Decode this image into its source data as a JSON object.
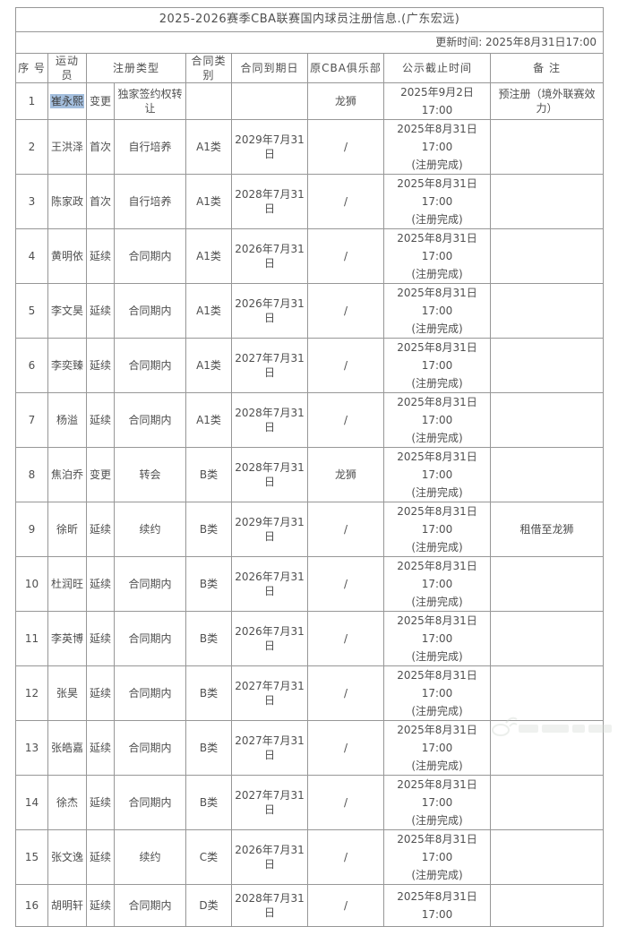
{
  "table": {
    "title": "2025-2026赛季CBA联赛国内球员注册信息.(广东宏远)",
    "update_time": "更新时间: 2025年8月31日17:00",
    "headers": [
      "序 号",
      "运动员",
      "注册类型",
      "合同类别",
      "合同到期日",
      "原CBA俱乐部",
      "公示截止时间",
      "备 注"
    ],
    "highlight_color": "#a3bedd",
    "rows": [
      {
        "no": "1",
        "name": "崔永熙",
        "highlight": true,
        "reg_type": "变更",
        "reg_detail": "独家签约权转让",
        "contract_class": "",
        "contract_expiry": "",
        "former_club": "龙狮",
        "pub_time": "2025年9月2日17:00",
        "pub_note": "",
        "remark": "预注册（境外联赛效力）"
      },
      {
        "no": "2",
        "name": "王洪泽",
        "highlight": false,
        "reg_type": "首次",
        "reg_detail": "自行培养",
        "contract_class": "A1类",
        "contract_expiry": "2029年7月31日",
        "former_club": "/",
        "pub_time": "2025年8月31日17:00",
        "pub_note": "(注册完成)",
        "remark": ""
      },
      {
        "no": "3",
        "name": "陈家政",
        "highlight": false,
        "reg_type": "首次",
        "reg_detail": "自行培养",
        "contract_class": "A1类",
        "contract_expiry": "2028年7月31日",
        "former_club": "/",
        "pub_time": "2025年8月31日17:00",
        "pub_note": "(注册完成)",
        "remark": ""
      },
      {
        "no": "4",
        "name": "黄明依",
        "highlight": false,
        "reg_type": "延续",
        "reg_detail": "合同期内",
        "contract_class": "A1类",
        "contract_expiry": "2026年7月31日",
        "former_club": "/",
        "pub_time": "2025年8月31日17:00",
        "pub_note": "(注册完成)",
        "remark": ""
      },
      {
        "no": "5",
        "name": "李文昊",
        "highlight": false,
        "reg_type": "延续",
        "reg_detail": "合同期内",
        "contract_class": "A1类",
        "contract_expiry": "2026年7月31日",
        "former_club": "/",
        "pub_time": "2025年8月31日17:00",
        "pub_note": "(注册完成)",
        "remark": ""
      },
      {
        "no": "6",
        "name": "李奕臻",
        "highlight": false,
        "reg_type": "延续",
        "reg_detail": "合同期内",
        "contract_class": "A1类",
        "contract_expiry": "2027年7月31日",
        "former_club": "/",
        "pub_time": "2025年8月31日17:00",
        "pub_note": "(注册完成)",
        "remark": ""
      },
      {
        "no": "7",
        "name": "杨溢",
        "highlight": false,
        "reg_type": "延续",
        "reg_detail": "合同期内",
        "contract_class": "A1类",
        "contract_expiry": "2028年7月31日",
        "former_club": "/",
        "pub_time": "2025年8月31日17:00",
        "pub_note": "(注册完成)",
        "remark": ""
      },
      {
        "no": "8",
        "name": "焦泊乔",
        "highlight": false,
        "reg_type": "变更",
        "reg_detail": "转会",
        "contract_class": "B类",
        "contract_expiry": "2028年7月31日",
        "former_club": "龙狮",
        "pub_time": "2025年8月31日17:00",
        "pub_note": "(注册完成)",
        "remark": ""
      },
      {
        "no": "9",
        "name": "徐昕",
        "highlight": false,
        "reg_type": "延续",
        "reg_detail": "续约",
        "contract_class": "B类",
        "contract_expiry": "2029年7月31日",
        "former_club": "/",
        "pub_time": "2025年8月31日17:00",
        "pub_note": "(注册完成)",
        "remark": "租借至龙狮"
      },
      {
        "no": "10",
        "name": "杜润旺",
        "highlight": false,
        "reg_type": "延续",
        "reg_detail": "合同期内",
        "contract_class": "B类",
        "contract_expiry": "2026年7月31日",
        "former_club": "/",
        "pub_time": "2025年8月31日17:00",
        "pub_note": "(注册完成)",
        "remark": ""
      },
      {
        "no": "11",
        "name": "李英博",
        "highlight": false,
        "reg_type": "延续",
        "reg_detail": "合同期内",
        "contract_class": "B类",
        "contract_expiry": "2026年7月31日",
        "former_club": "/",
        "pub_time": "2025年8月31日17:00",
        "pub_note": "(注册完成)",
        "remark": ""
      },
      {
        "no": "12",
        "name": "张昊",
        "highlight": false,
        "reg_type": "延续",
        "reg_detail": "合同期内",
        "contract_class": "B类",
        "contract_expiry": "2027年7月31日",
        "former_club": "/",
        "pub_time": "2025年8月31日17:00",
        "pub_note": "(注册完成)",
        "remark": ""
      },
      {
        "no": "13",
        "name": "张皓嘉",
        "highlight": false,
        "reg_type": "延续",
        "reg_detail": "合同期内",
        "contract_class": "B类",
        "contract_expiry": "2027年7月31日",
        "former_club": "/",
        "pub_time": "2025年8月31日17:00",
        "pub_note": "(注册完成)",
        "remark": ""
      },
      {
        "no": "14",
        "name": "徐杰",
        "highlight": false,
        "reg_type": "延续",
        "reg_detail": "合同期内",
        "contract_class": "B类",
        "contract_expiry": "2027年7月31日",
        "former_club": "/",
        "pub_time": "2025年8月31日17:00",
        "pub_note": "(注册完成)",
        "remark": ""
      },
      {
        "no": "15",
        "name": "张文逸",
        "highlight": false,
        "reg_type": "延续",
        "reg_detail": "续约",
        "contract_class": "C类",
        "contract_expiry": "2026年7月31日",
        "former_club": "/",
        "pub_time": "2025年8月31日17:00",
        "pub_note": "(注册完成)",
        "remark": ""
      },
      {
        "no": "16",
        "name": "胡明轩",
        "highlight": false,
        "reg_type": "延续",
        "reg_detail": "合同期内",
        "contract_class": "D类",
        "contract_expiry": "2028年7月31日",
        "former_club": "/",
        "pub_time": "2025年8月31日17:00",
        "pub_note": "",
        "remark": ""
      }
    ]
  }
}
